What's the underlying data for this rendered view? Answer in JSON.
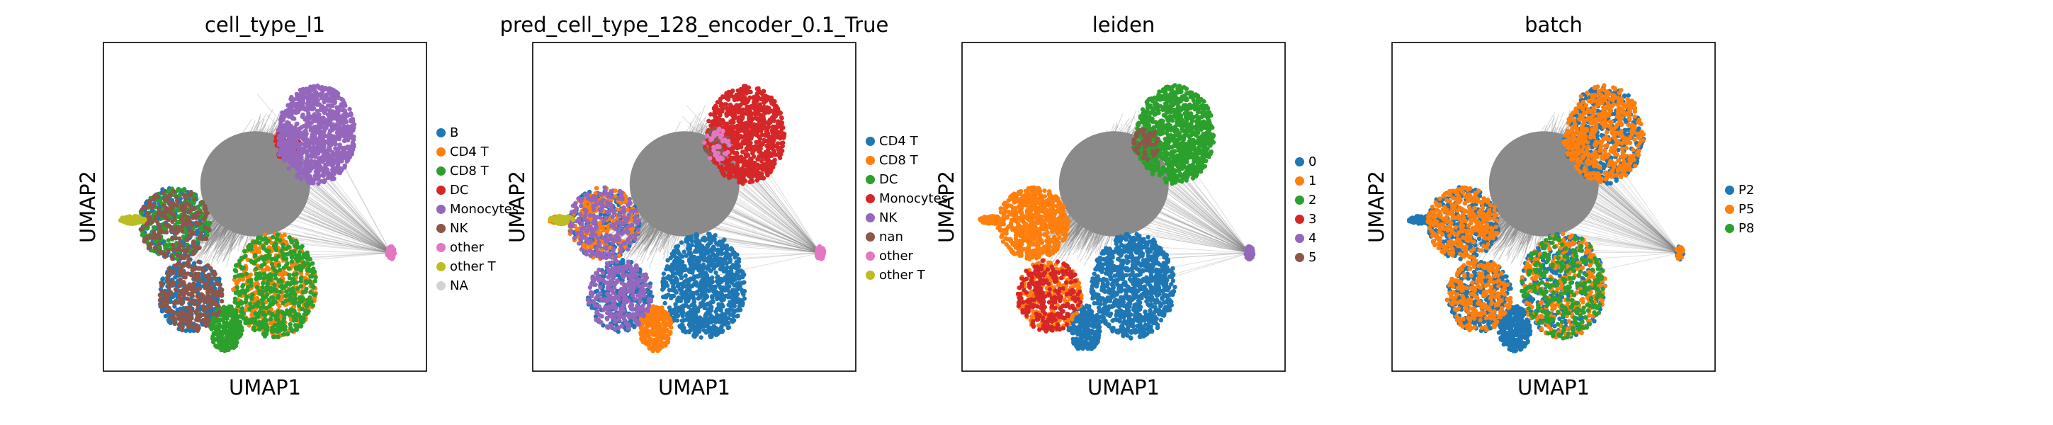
{
  "chart_data": [
    {
      "type": "scatter",
      "title": "cell_type_l1",
      "xlabel": "UMAP1",
      "ylabel": "UMAP2",
      "grid": false,
      "legend_placement": "right",
      "series": [
        {
          "name": "B",
          "color": "#1f77b4"
        },
        {
          "name": "CD4 T",
          "color": "#ff7f0e"
        },
        {
          "name": "CD8 T",
          "color": "#2ca02c"
        },
        {
          "name": "DC",
          "color": "#d62728"
        },
        {
          "name": "Monocytes",
          "color": "#9467bd"
        },
        {
          "name": "NK",
          "color": "#8c564b"
        },
        {
          "name": "other",
          "color": "#e377c2"
        },
        {
          "name": "other T",
          "color": "#bcbd22"
        },
        {
          "name": "NA",
          "color": "#d3d3d3"
        }
      ]
    },
    {
      "type": "scatter",
      "title": "pred_cell_type_128_encoder_0.1_True",
      "xlabel": "UMAP1",
      "ylabel": "UMAP2",
      "grid": false,
      "legend_placement": "right",
      "series": [
        {
          "name": "CD4 T",
          "color": "#1f77b4"
        },
        {
          "name": "CD8 T",
          "color": "#ff7f0e"
        },
        {
          "name": "DC",
          "color": "#2ca02c"
        },
        {
          "name": "Monocytes",
          "color": "#d62728"
        },
        {
          "name": "NK",
          "color": "#9467bd"
        },
        {
          "name": "nan",
          "color": "#8c564b"
        },
        {
          "name": "other",
          "color": "#e377c2"
        },
        {
          "name": "other T",
          "color": "#bcbd22"
        }
      ]
    },
    {
      "type": "scatter",
      "title": "leiden",
      "xlabel": "UMAP1",
      "ylabel": "UMAP2",
      "grid": false,
      "legend_placement": "right",
      "series": [
        {
          "name": "0",
          "color": "#1f77b4"
        },
        {
          "name": "1",
          "color": "#ff7f0e"
        },
        {
          "name": "2",
          "color": "#2ca02c"
        },
        {
          "name": "3",
          "color": "#d62728"
        },
        {
          "name": "4",
          "color": "#9467bd"
        },
        {
          "name": "5",
          "color": "#8c564b"
        }
      ]
    },
    {
      "type": "scatter",
      "title": "batch",
      "xlabel": "UMAP1",
      "ylabel": "UMAP2",
      "grid": false,
      "legend_placement": "right",
      "series": [
        {
          "name": "P2",
          "color": "#1f77b4"
        },
        {
          "name": "P5",
          "color": "#ff7f0e"
        },
        {
          "name": "P8",
          "color": "#2ca02c"
        }
      ]
    }
  ]
}
